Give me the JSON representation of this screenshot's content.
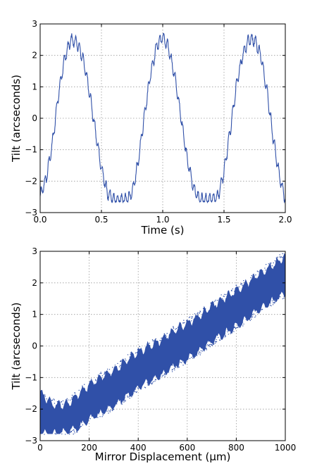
{
  "colors": {
    "series": "#3050a8",
    "grid": "#9a9a9a",
    "axes": "#000000"
  },
  "chart_data": [
    {
      "type": "line",
      "xlabel": "Time (s)",
      "ylabel": "Tilt (arcseconds)",
      "xlim": [
        0.0,
        2.0
      ],
      "ylim": [
        -3,
        3
      ],
      "xticks": [
        0.0,
        0.5,
        1.0,
        1.5,
        2.0
      ],
      "xtick_labels": [
        "0.0",
        "0.5",
        "1.0",
        "1.5",
        "2.0"
      ],
      "yticks": [
        -3,
        -2,
        -1,
        0,
        1,
        2,
        3
      ],
      "ytick_labels": [
        "−3",
        "−2",
        "−1",
        "0",
        "1",
        "2",
        "3"
      ],
      "grid": true,
      "series": [
        {
          "color": "#3050a8",
          "x": [
            0.0,
            0.05,
            0.1,
            0.15,
            0.2,
            0.25,
            0.3,
            0.35,
            0.4,
            0.45,
            0.5,
            0.55,
            0.6,
            0.65,
            0.7,
            0.75,
            0.8,
            0.85,
            0.9,
            0.95,
            1.0,
            1.05,
            1.1,
            1.15,
            1.2,
            1.25,
            1.3,
            1.35,
            1.4,
            1.45,
            1.5,
            1.55,
            1.6,
            1.65,
            1.7,
            1.75,
            1.8,
            1.85,
            1.9,
            1.95,
            2.0
          ],
          "y": [
            -2.5,
            -1.9,
            -0.8,
            0.8,
            1.9,
            2.5,
            2.4,
            1.9,
            0.9,
            -0.4,
            -1.6,
            -2.4,
            -2.6,
            -2.6,
            -2.6,
            -2.4,
            -1.4,
            0.1,
            1.4,
            2.3,
            2.6,
            2.2,
            1.3,
            0.0,
            -1.3,
            -2.2,
            -2.6,
            -2.6,
            -2.6,
            -2.5,
            -1.7,
            -0.4,
            1.0,
            2.0,
            2.5,
            2.5,
            2.0,
            0.9,
            -0.6,
            -1.8,
            -2.6
          ]
        }
      ]
    },
    {
      "type": "scatter",
      "xlabel": "Mirror Displacement (μm)",
      "ylabel": "Tilt (arcseconds)",
      "xlim": [
        0,
        1000
      ],
      "ylim": [
        -3,
        3
      ],
      "xticks": [
        0,
        200,
        400,
        600,
        800,
        1000
      ],
      "xtick_labels": [
        "0",
        "200",
        "400",
        "600",
        "800",
        "1000"
      ],
      "yticks": [
        -3,
        -2,
        -1,
        0,
        1,
        2,
        3
      ],
      "ytick_labels": [
        "−3",
        "−2",
        "−1",
        "0",
        "1",
        "2",
        "3"
      ],
      "grid": true,
      "series": [
        {
          "color": "#3050a8",
          "x": [
            0,
            50,
            100,
            150,
            200,
            250,
            300,
            350,
            400,
            450,
            500,
            550,
            600,
            650,
            700,
            750,
            800,
            850,
            900,
            950,
            1000
          ],
          "y_upper": [
            -1.5,
            -1.85,
            -1.9,
            -1.6,
            -1.25,
            -1.0,
            -0.8,
            -0.5,
            -0.2,
            0.0,
            0.2,
            0.5,
            0.7,
            0.95,
            1.25,
            1.5,
            1.75,
            2.0,
            2.3,
            2.55,
            2.85
          ],
          "y_lower": [
            -2.75,
            -2.75,
            -2.75,
            -2.6,
            -2.3,
            -2.1,
            -1.9,
            -1.6,
            -1.3,
            -1.1,
            -0.9,
            -0.6,
            -0.4,
            -0.15,
            0.15,
            0.4,
            0.65,
            0.9,
            1.2,
            1.45,
            1.65
          ]
        }
      ]
    }
  ]
}
